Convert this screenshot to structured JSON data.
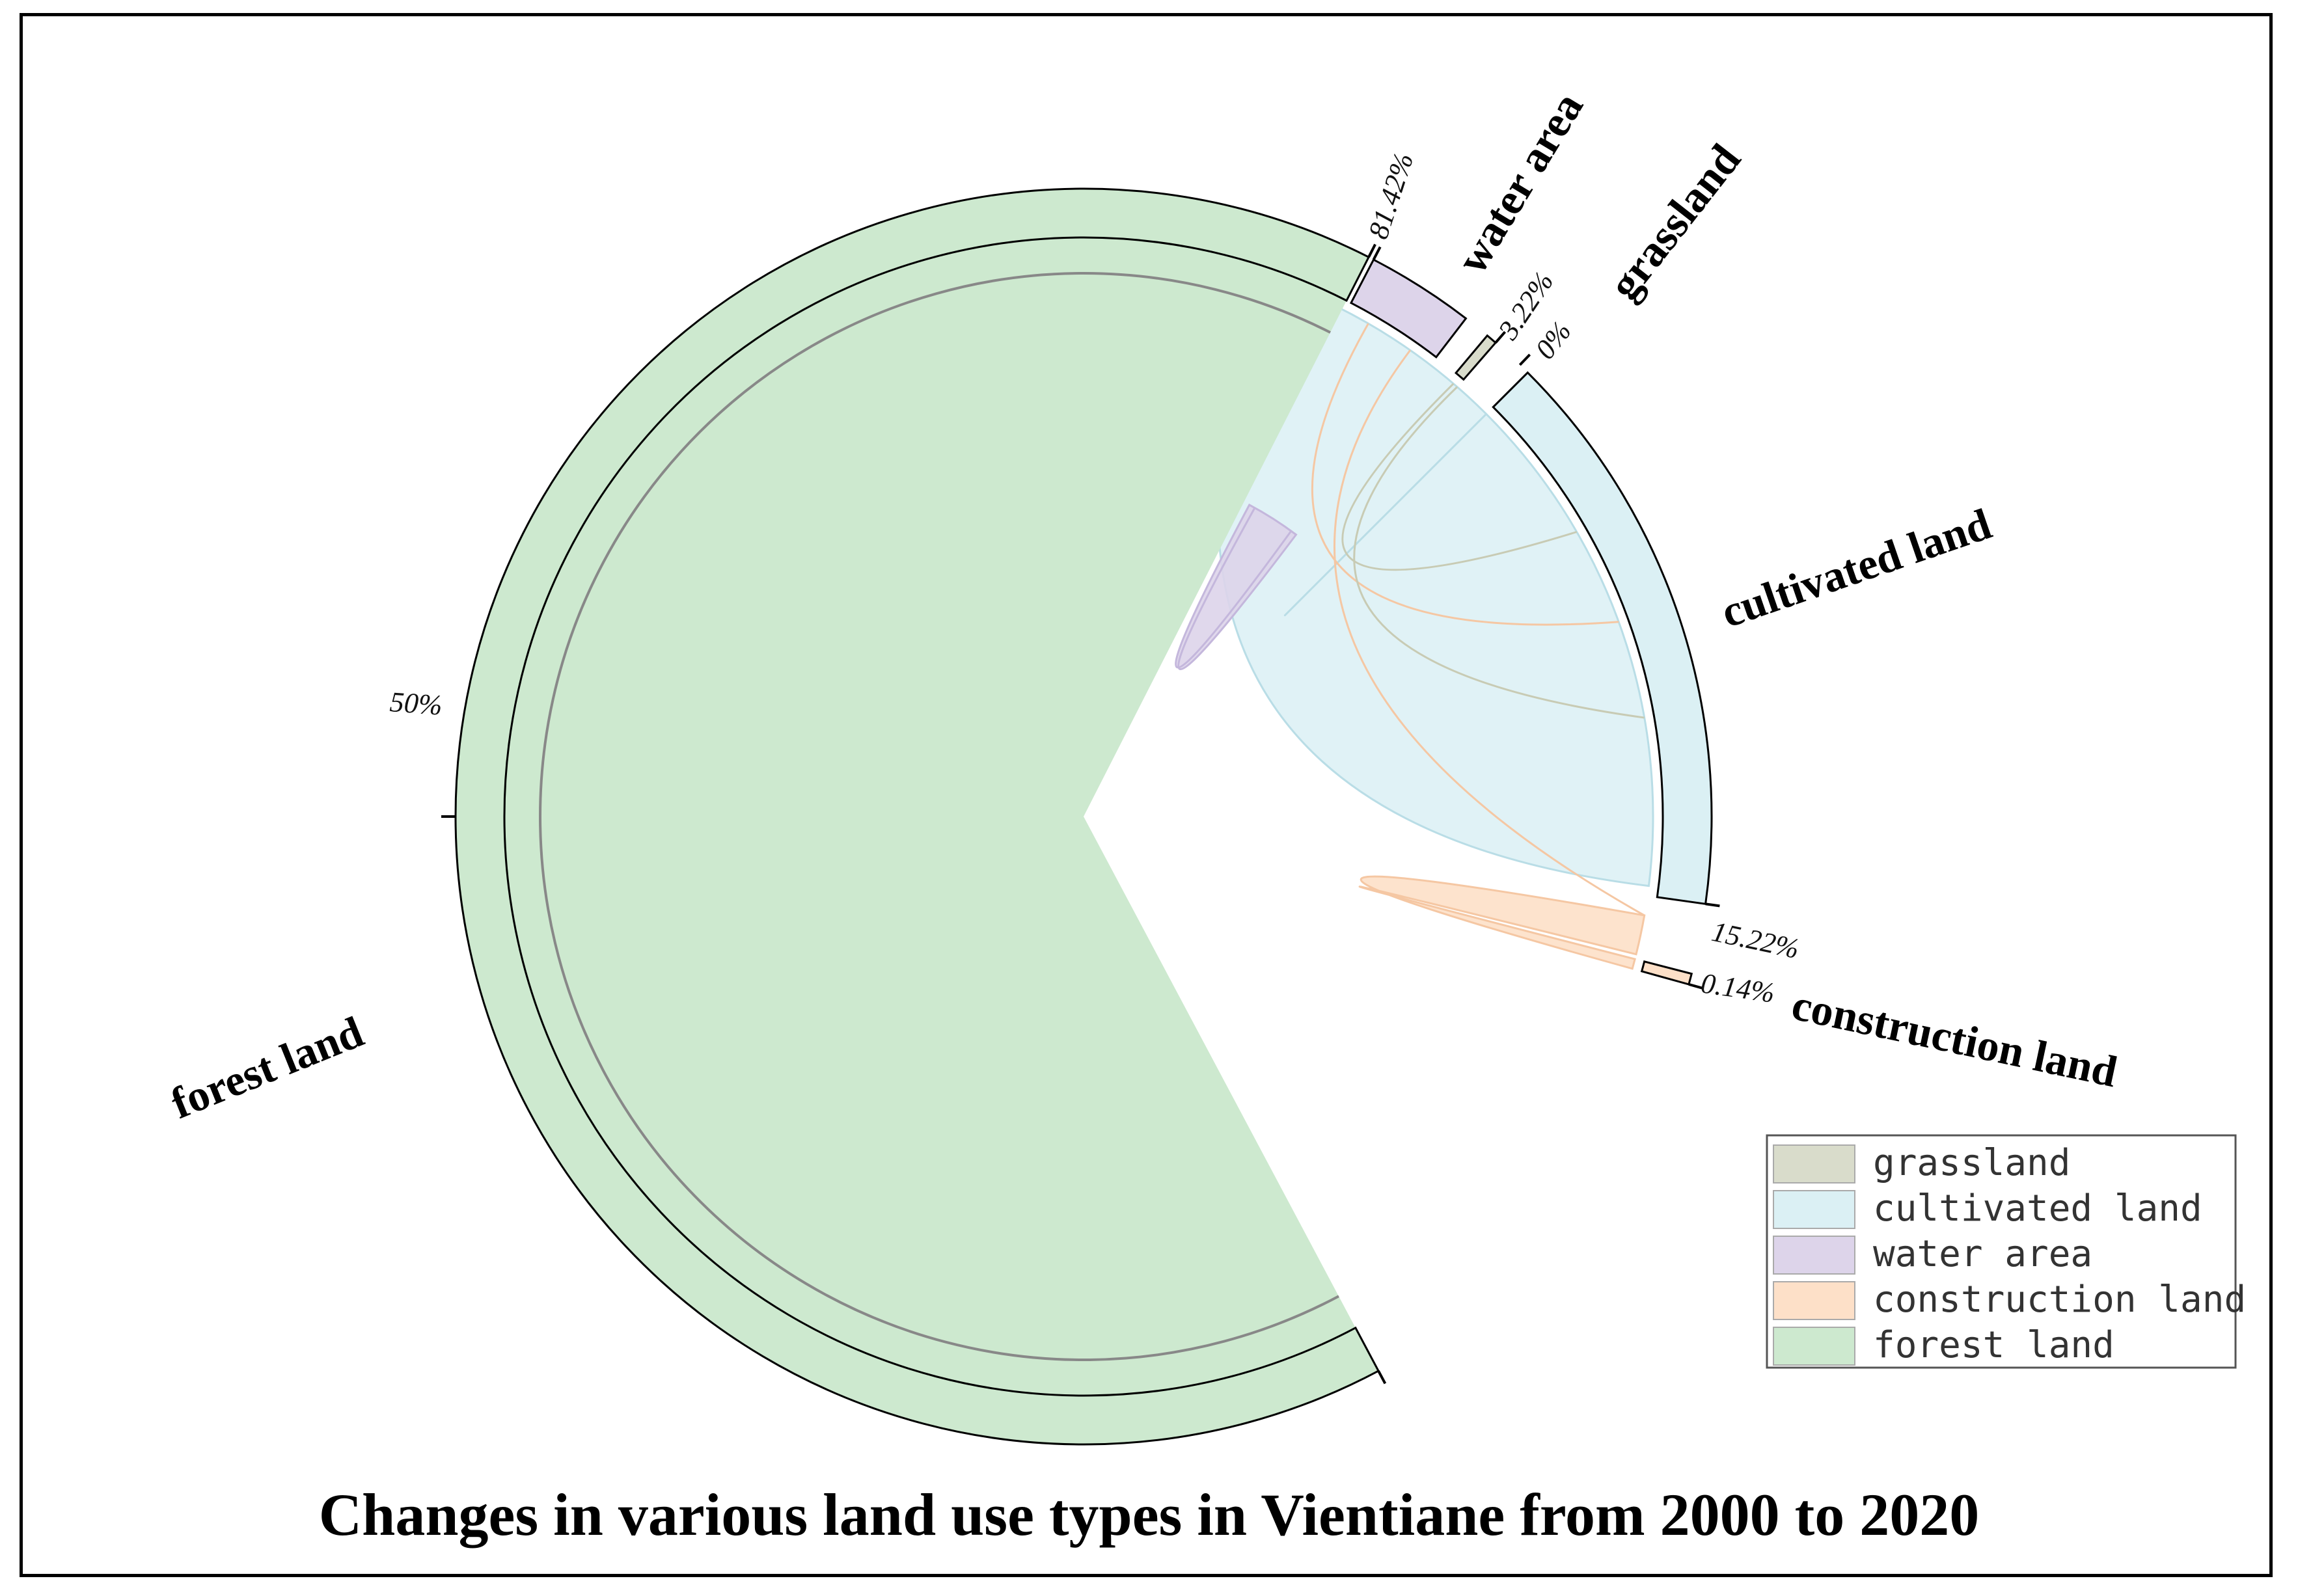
{
  "chart_data": {
    "type": "chord",
    "title": "Changes in various land use types in Vientiane from 2000 to 2020",
    "categories": [
      "grassland",
      "cultivated land",
      "water area",
      "construction land",
      "forest land"
    ],
    "colors": {
      "grassland": "#d9dccb",
      "cultivated land": "#dbf0f4",
      "water area": "#ddd4ea",
      "construction land": "#fde0c8",
      "forest land": "#cde9cf"
    },
    "segment_labels": [
      "water area",
      "grassland",
      "cultivated land",
      "construction land",
      "forest land"
    ],
    "tick_labels": [
      "81.42%",
      "3.22%",
      "0%",
      "15.22%",
      "0.14%",
      "50%"
    ],
    "legend_position": "bottom-right",
    "grid": false
  }
}
